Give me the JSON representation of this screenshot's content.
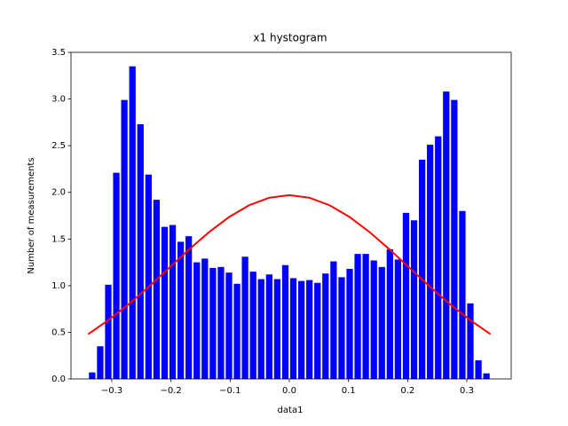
{
  "chart_data": {
    "type": "histogram",
    "title": "x1 hystogram",
    "xlabel": "data1",
    "ylabel": "Number of measurements",
    "color": "#0000ff",
    "bins": [
      -0.34,
      -0.3264,
      -0.3128,
      -0.2992,
      -0.2856,
      -0.272,
      -0.2584,
      -0.2448,
      -0.2312,
      -0.2176,
      -0.204,
      -0.1904,
      -0.1768,
      -0.1632,
      -0.1496,
      -0.136,
      -0.1224,
      -0.1088,
      -0.0952,
      -0.0816,
      -0.068,
      -0.0544,
      -0.0408,
      -0.0272,
      -0.0136,
      0,
      0.0136,
      0.0272,
      0.0408,
      0.0544,
      0.068,
      0.0816,
      0.0952,
      0.1088,
      0.1224,
      0.136,
      0.1496,
      0.1632,
      0.1768,
      0.1904,
      0.204,
      0.2176,
      0.2312,
      0.2448,
      0.2584,
      0.272,
      0.2856,
      0.2992,
      0.3128,
      0.3264,
      0.34
    ],
    "values": [
      0.07,
      0.35,
      1.01,
      2.21,
      2.99,
      3.35,
      2.73,
      2.19,
      1.92,
      1.63,
      1.65,
      1.47,
      1.53,
      1.25,
      1.29,
      1.19,
      1.2,
      1.14,
      1.02,
      1.31,
      1.15,
      1.07,
      1.12,
      1.07,
      1.22,
      1.08,
      1.05,
      1.06,
      1.03,
      1.13,
      1.26,
      1.09,
      1.18,
      1.34,
      1.34,
      1.27,
      1.2,
      1.39,
      1.28,
      1.78,
      1.7,
      2.35,
      2.51,
      2.6,
      3.08,
      2.99,
      1.8,
      0.81,
      0.2,
      0.06
    ],
    "curve": {
      "color": "#ff0000",
      "x": [
        -0.34,
        -0.306,
        -0.272,
        -0.238,
        -0.204,
        -0.17,
        -0.136,
        -0.102,
        -0.068,
        -0.034,
        0,
        0.034,
        0.068,
        0.102,
        0.136,
        0.17,
        0.204,
        0.238,
        0.272,
        0.306,
        0.34
      ],
      "values": [
        0.48,
        0.629,
        0.799,
        0.987,
        1.186,
        1.385,
        1.572,
        1.735,
        1.862,
        1.942,
        1.97,
        1.942,
        1.862,
        1.735,
        1.572,
        1.385,
        1.186,
        0.987,
        0.799,
        0.629,
        0.48
      ]
    },
    "xlim": [
      -0.369,
      0.375
    ],
    "ylim": [
      0,
      3.5
    ],
    "xticks": [
      {
        "value": -0.3,
        "label": "−0.3"
      },
      {
        "value": -0.2,
        "label": "−0.2"
      },
      {
        "value": -0.1,
        "label": "−0.1"
      },
      {
        "value": 0,
        "label": "0.0"
      },
      0.1,
      0.2,
      0.3
    ],
    "yticks": [
      {
        "value": 0,
        "label": "0.0"
      },
      0.5,
      {
        "value": 1,
        "label": "1.0"
      },
      1.5,
      {
        "value": 2,
        "label": "2.0"
      },
      2.5,
      {
        "value": 3,
        "label": "3.0"
      },
      3.5
    ]
  }
}
